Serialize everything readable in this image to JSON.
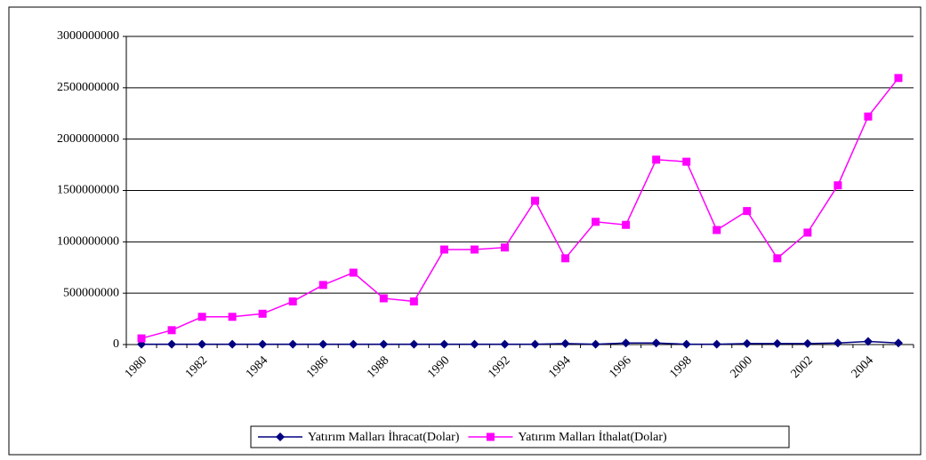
{
  "chart_data": {
    "type": "line",
    "categories": [
      "1980",
      null,
      "1982",
      null,
      "1984",
      null,
      "1986",
      null,
      "1988",
      null,
      "1990",
      null,
      "1992",
      null,
      "1994",
      null,
      "1996",
      null,
      "1998",
      null,
      "2000",
      null,
      "2002",
      null,
      "2004",
      null
    ],
    "series": [
      {
        "name": "Yatırım Malları İhracat(Dolar)",
        "color": "#000080",
        "marker": "diamond",
        "values": [
          3000000,
          3000000,
          3000000,
          3000000,
          3000000,
          3000000,
          3000000,
          3000000,
          3000000,
          3000000,
          3000000,
          3000000,
          3000000,
          3000000,
          10000000,
          3000000,
          15000000,
          15000000,
          3000000,
          3000000,
          10000000,
          10000000,
          10000000,
          15000000,
          30000000,
          15000000
        ]
      },
      {
        "name": "Yatırım Malları İthalat(Dolar)",
        "color": "#ff00ff",
        "marker": "square",
        "values": [
          60000000,
          140000000,
          270000000,
          270000000,
          300000000,
          420000000,
          580000000,
          700000000,
          450000000,
          420000000,
          925000000,
          925000000,
          945000000,
          1400000000,
          840000000,
          1195000000,
          1165000000,
          1800000000,
          1780000000,
          1115000000,
          1300000000,
          840000000,
          1090000000,
          1550000000,
          2220000000,
          2595000000
        ]
      }
    ],
    "ylim": [
      0,
      3000000000
    ],
    "yticks": [
      0,
      500000000,
      1000000000,
      1500000000,
      2000000000,
      2500000000,
      3000000000
    ],
    "grid": true,
    "legend": "bottom"
  }
}
